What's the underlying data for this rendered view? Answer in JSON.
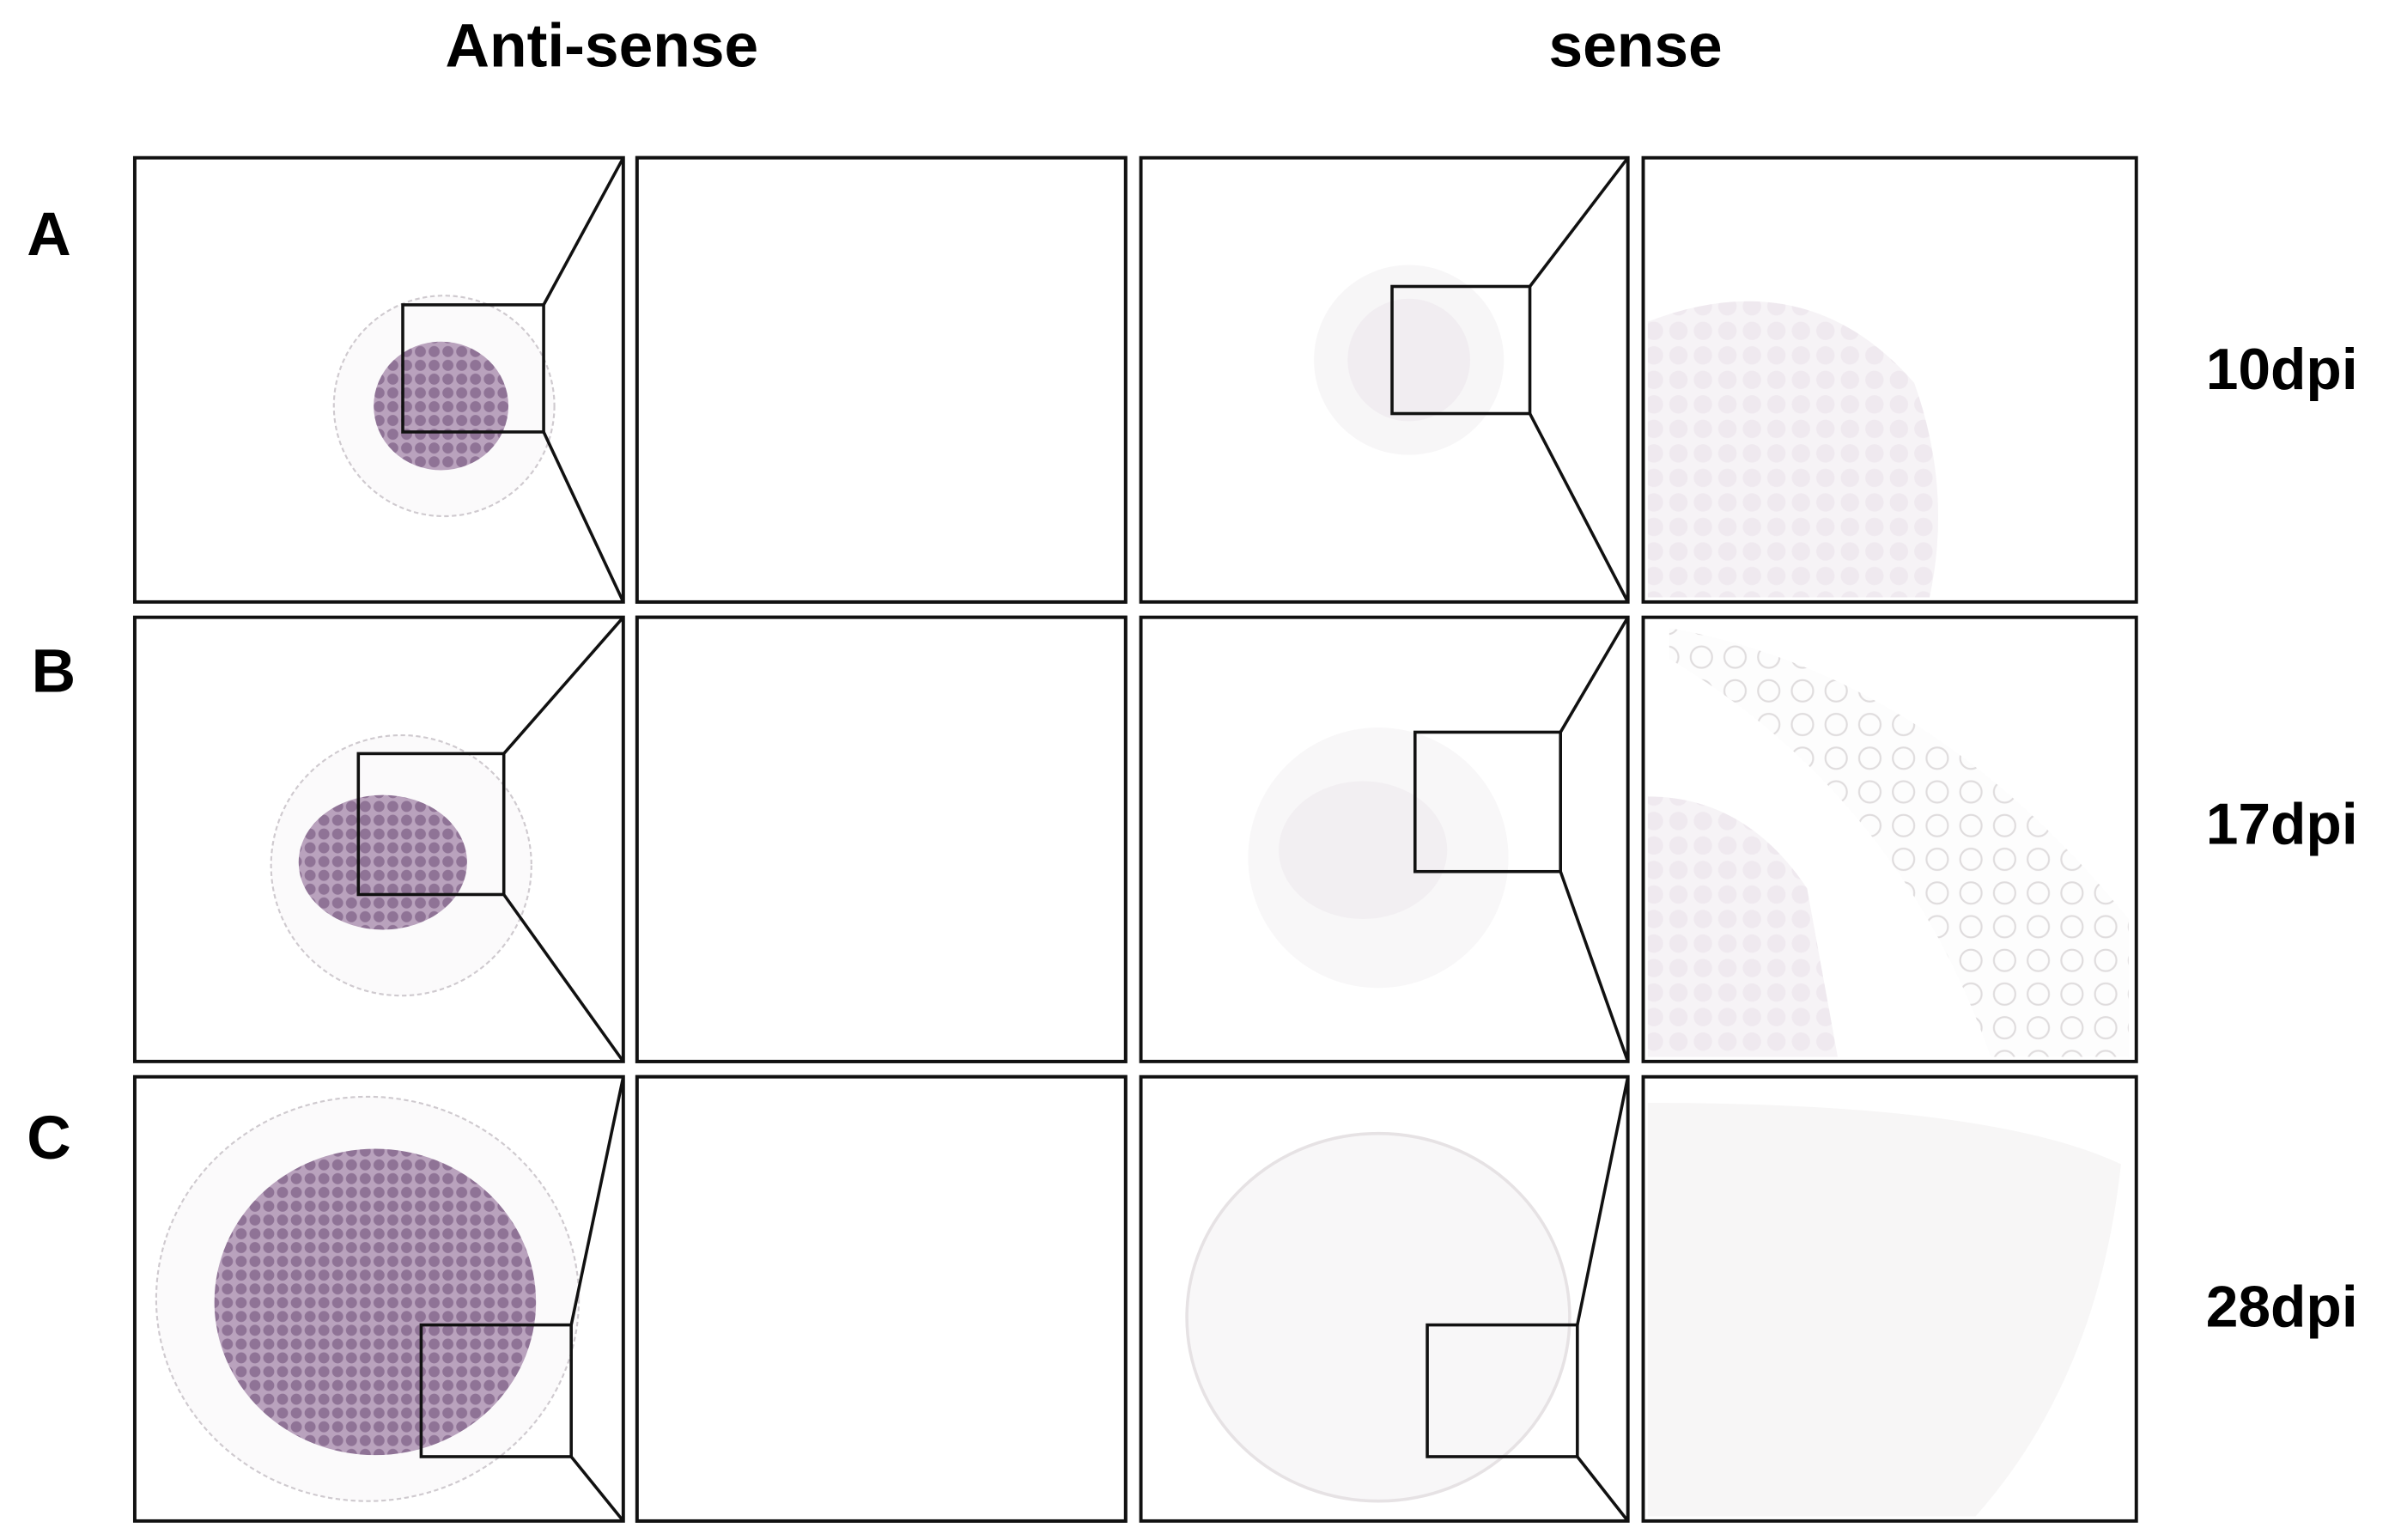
{
  "column_headers": [
    "Anti-sense",
    "sense"
  ],
  "rows": [
    {
      "label": "A",
      "time": "10dpi"
    },
    {
      "label": "B",
      "time": "17dpi"
    },
    {
      "label": "C",
      "time": "28dpi"
    }
  ]
}
